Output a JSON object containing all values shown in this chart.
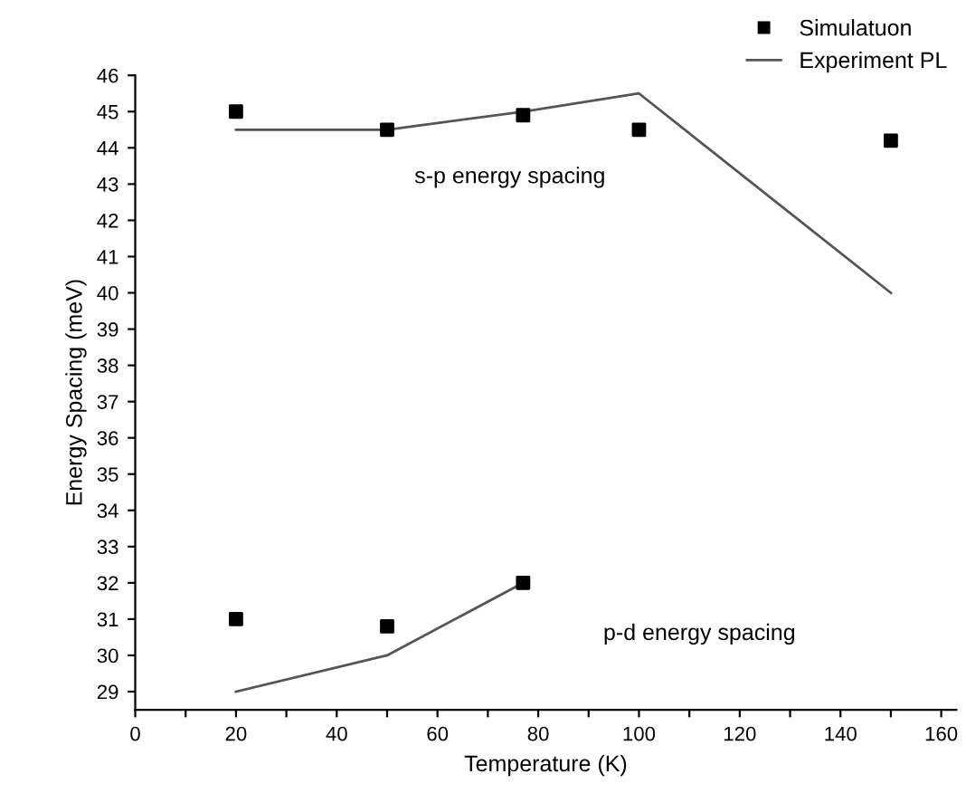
{
  "chart_data": {
    "type": "line",
    "xlabel": "Temperature (K)",
    "ylabel": "Energy Spacing (meV)",
    "series": [
      {
        "name": "Simulatuon",
        "type": "scatter",
        "marker": "square",
        "color": "#000000",
        "x": [
          20,
          50,
          77,
          100,
          150,
          20,
          50,
          77
        ],
        "values": [
          45,
          44.5,
          44.9,
          44.5,
          44.2,
          31,
          30.8,
          32
        ]
      },
      {
        "name": "Experiment PL",
        "marker": "none",
        "line_style": "solid",
        "color": "#555555",
        "x": [
          20,
          50,
          77,
          100,
          150,
          null,
          20,
          50,
          77
        ],
        "values": [
          44.5,
          44.5,
          45,
          45.5,
          40,
          null,
          29,
          30,
          32
        ]
      }
    ],
    "xlim": [
      0,
      163
    ],
    "ylim": [
      28.5,
      46
    ],
    "xticks": [
      0,
      {
        "value": 10,
        "label": null
      },
      20,
      {
        "value": 30,
        "label": null
      },
      40,
      {
        "value": 50,
        "label": null
      },
      60,
      {
        "value": 70,
        "label": null
      },
      80,
      {
        "value": 90,
        "label": null
      },
      100,
      {
        "value": 110,
        "label": null
      },
      120,
      {
        "value": 130,
        "label": null
      },
      140,
      {
        "value": 150,
        "label": null
      },
      160
    ],
    "yticks": [
      29,
      30,
      31,
      32,
      33,
      34,
      35,
      36,
      37,
      38,
      39,
      40,
      41,
      42,
      43,
      44,
      45,
      46
    ],
    "annotations": [
      "s-p energy spacing",
      "p-d energy spacing"
    ],
    "grid": false,
    "legend": "top right"
  }
}
